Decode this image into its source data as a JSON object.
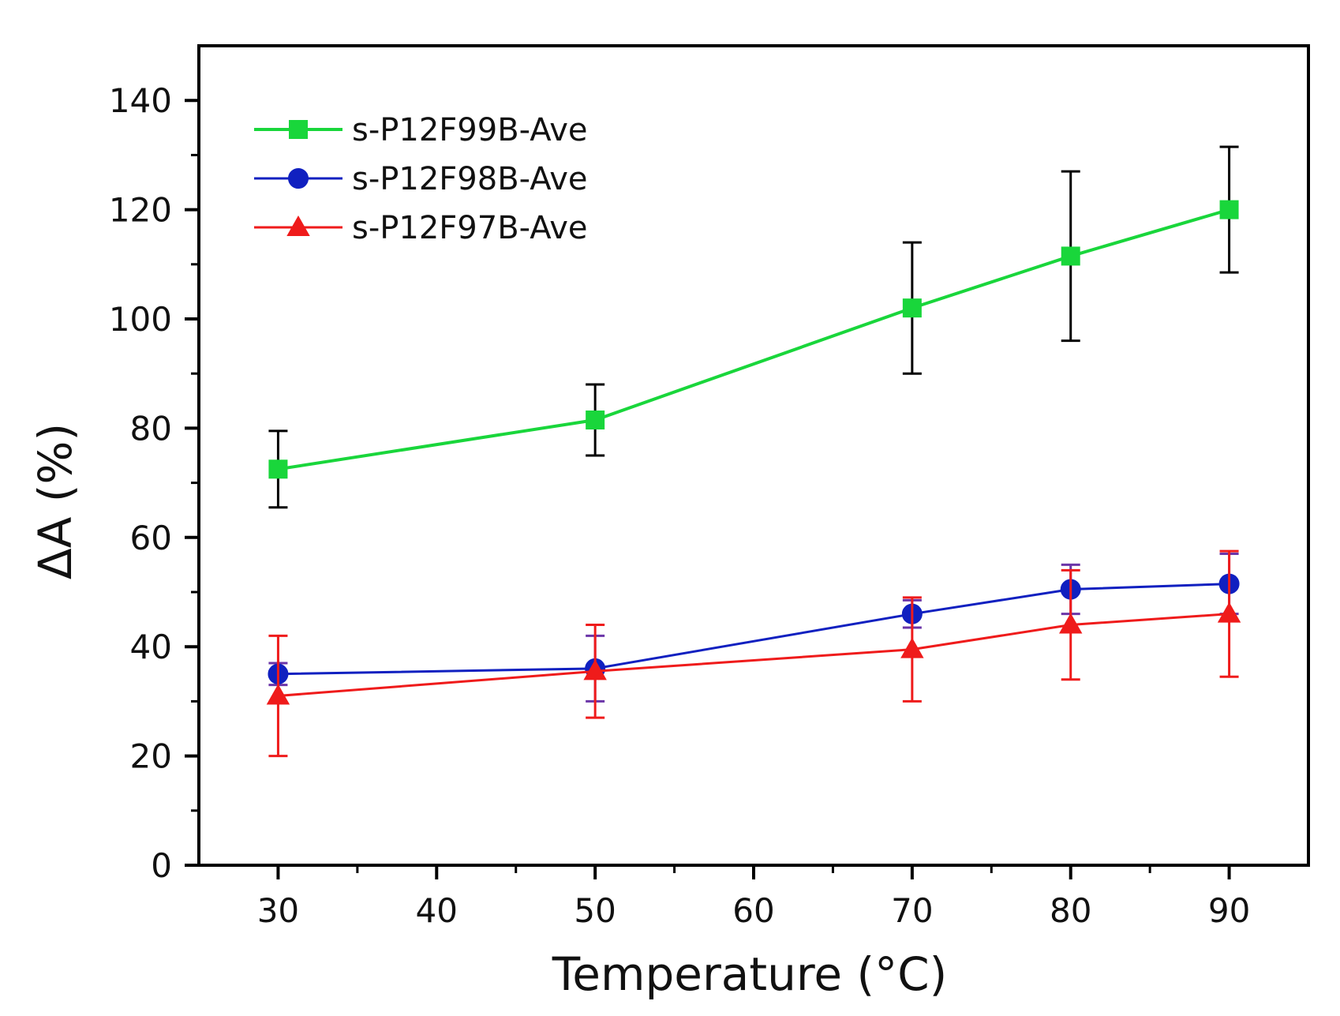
{
  "chart_data": {
    "type": "line",
    "title": "",
    "xlabel": "Temperature (°C)",
    "ylabel": "ΔA (%)",
    "xlim": [
      25,
      95
    ],
    "ylim": [
      0,
      150
    ],
    "x": [
      30,
      50,
      70,
      80,
      90
    ],
    "x_ticks": [
      30,
      40,
      50,
      60,
      70,
      80,
      90
    ],
    "y_ticks": [
      0,
      20,
      40,
      60,
      80,
      100,
      120,
      140
    ],
    "grid": false,
    "legend_position": "top-left",
    "series": [
      {
        "name": "s-P12F99B-Ave",
        "marker": "square",
        "color": "#19d63b",
        "error_bar_color": "#000000",
        "values": [
          72.5,
          81.5,
          102,
          111.5,
          120
        ],
        "errors": [
          7,
          6.5,
          12,
          15.5,
          11.5
        ]
      },
      {
        "name": "s-P12F98B-Ave",
        "marker": "circle",
        "color": "#1020c0",
        "error_bar_color": "#6b35a8",
        "values": [
          35,
          36,
          46,
          50.5,
          51.5
        ],
        "errors": [
          2,
          6,
          2.5,
          4.5,
          5.5
        ]
      },
      {
        "name": "s-P12F97B-Ave",
        "marker": "triangle",
        "color": "#ef1b1b",
        "error_bar_color": "#ef1b1b",
        "values": [
          31,
          35.5,
          39.5,
          44,
          46
        ],
        "errors": [
          11,
          8.5,
          9.5,
          10,
          11.5
        ]
      }
    ]
  }
}
